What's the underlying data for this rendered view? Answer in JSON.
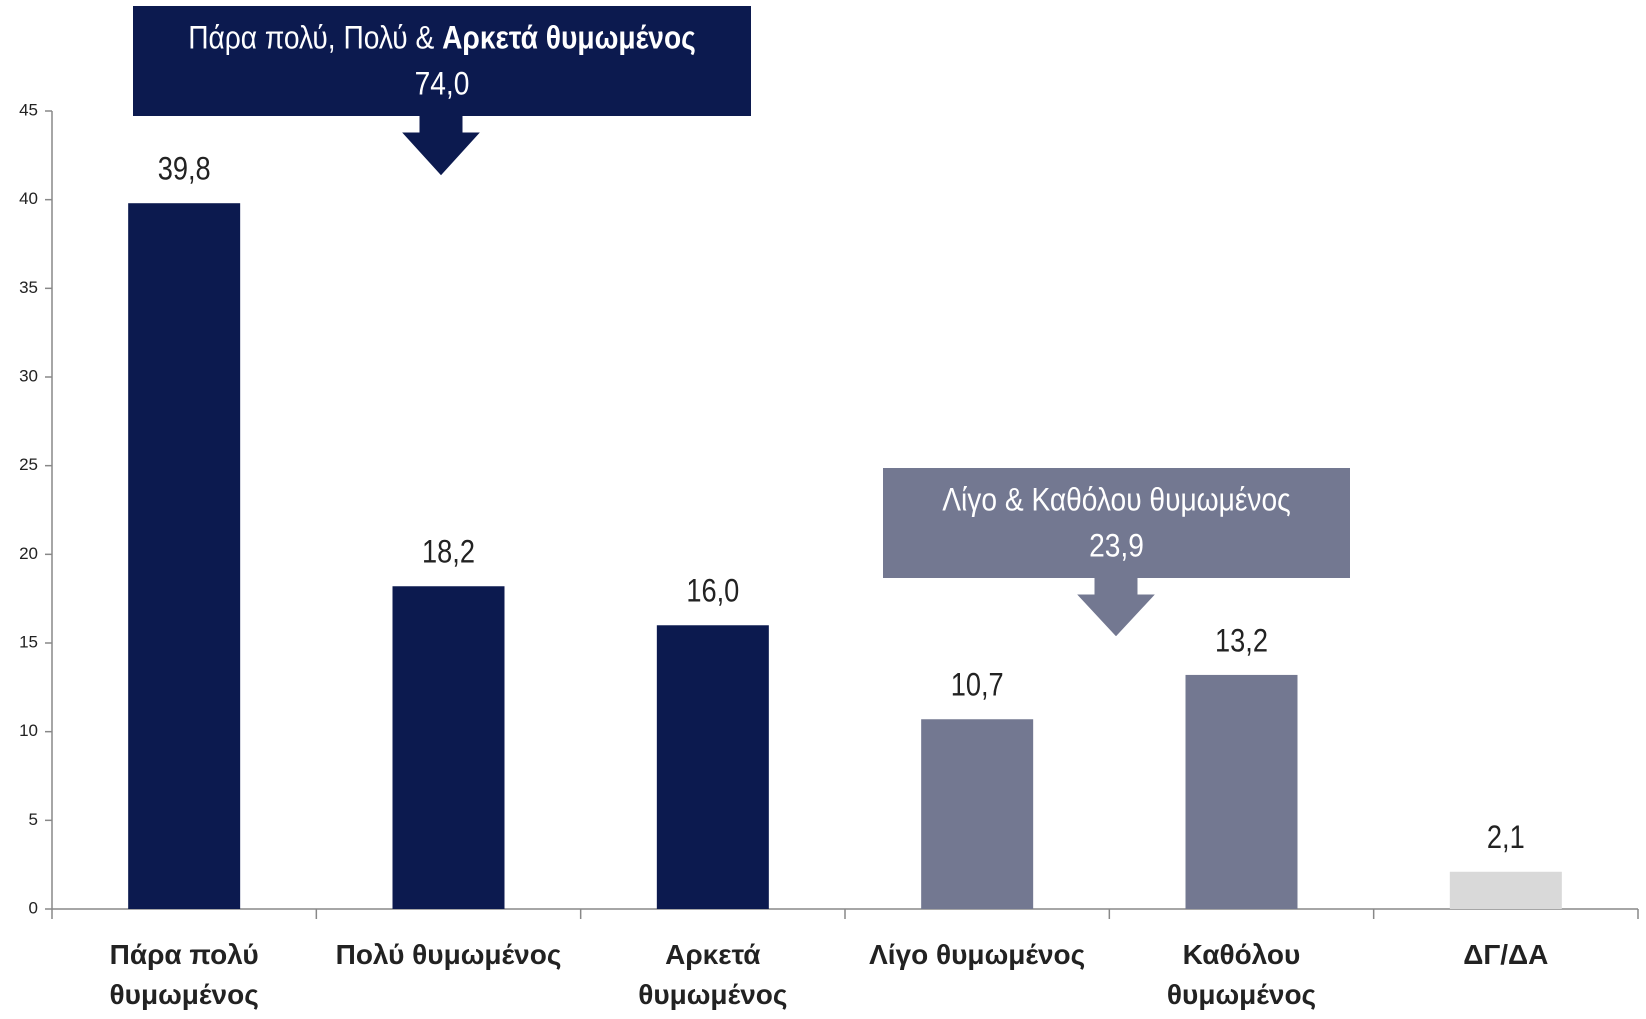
{
  "chart_data": {
    "type": "bar",
    "categories": [
      "Πάρα πολύ θυμωμένος",
      "Πολύ θυμωμένος",
      "Αρκετά θυμωμένος",
      "Λίγο θυμωμένος",
      "Καθόλου θυμωμένος",
      "ΔΓ/ΔΑ"
    ],
    "values": [
      39.8,
      18.2,
      16.0,
      10.7,
      13.2,
      2.1
    ],
    "value_labels": [
      "39,8",
      "18,2",
      "16,0",
      "10,7",
      "13,2",
      "2,1"
    ],
    "colors": [
      "#0c1a4f",
      "#0c1a4f",
      "#0c1a4f",
      "#737891",
      "#737891",
      "#d9d9d9"
    ],
    "ylim": [
      0,
      45
    ],
    "yticks": [
      0,
      5,
      10,
      15,
      20,
      25,
      30,
      35,
      40,
      45
    ],
    "annotations": [
      {
        "text": "Πάρα πολύ, Πολύ &",
        "text_bold": "Αρκετά θυμωμένος",
        "value": "74,0",
        "color": "#0c1a4f"
      },
      {
        "text": "Λίγο  & Καθόλου θυμωμένος",
        "value": "23,9",
        "color": "#737891"
      }
    ]
  }
}
